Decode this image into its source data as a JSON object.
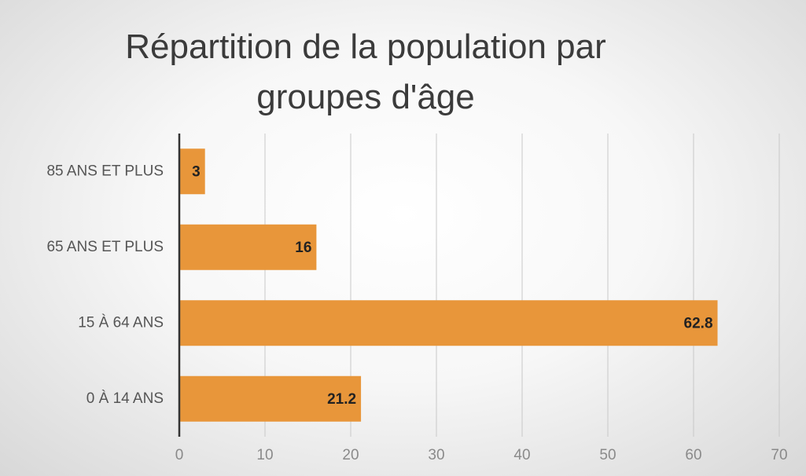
{
  "chart_data": {
    "type": "barh",
    "title": "Répartition de la population par groupes d'âge",
    "categories": [
      "85 ANS ET PLUS",
      "65 ANS ET PLUS",
      "15 À 64 ANS",
      "0 À 14 ANS"
    ],
    "values": [
      3,
      16,
      62.8,
      21.2
    ],
    "color": "#e8963a",
    "xlim": [
      0,
      70
    ],
    "xticks": [
      0,
      10,
      20,
      30,
      40,
      50,
      60,
      70
    ],
    "grid": true
  }
}
